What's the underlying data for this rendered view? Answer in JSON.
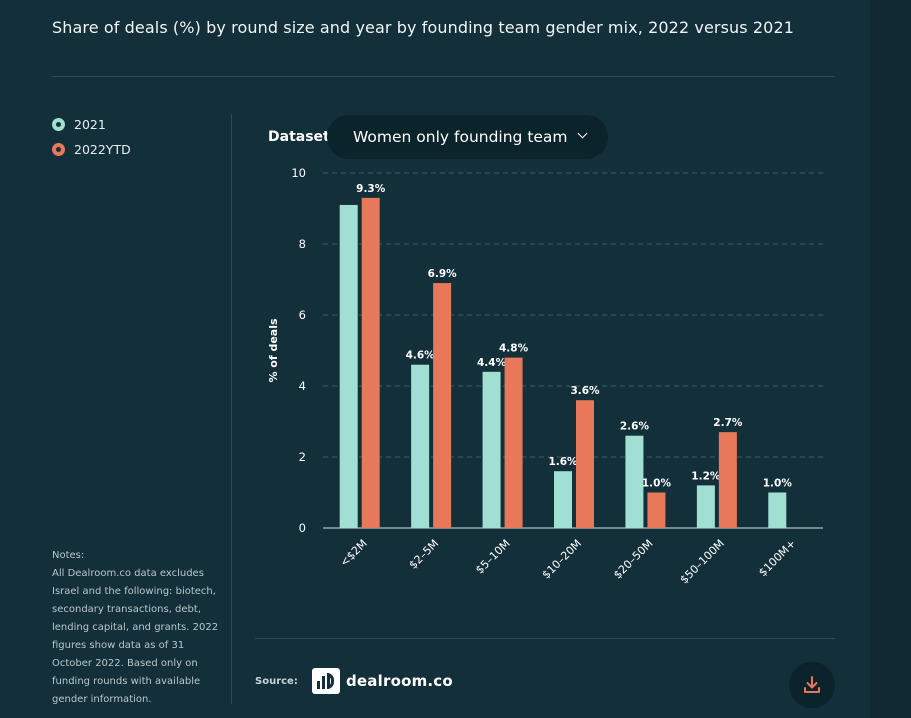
{
  "title": "Share of deals (%) by round size and year by founding team gender mix, 2022 versus 2021",
  "legend": [
    {
      "label": "2021",
      "color": "#9fe0d3"
    },
    {
      "label": "2022YTD",
      "color": "#e8785a"
    }
  ],
  "dataset": {
    "label": "Dataset",
    "selected": "Women only founding team"
  },
  "notes": {
    "label": "Notes:",
    "text": "All Dealroom.co data excludes Israel and the following: biotech, secondary transactions, debt, lending capital, and grants. 2022 figures show data as of 31 October 2022. Based only on funding rounds with available gender information."
  },
  "source": {
    "label": "Source:",
    "brand": "dealroom.co"
  },
  "icons": {
    "download": "download-icon",
    "chevron": "chevron-down-icon",
    "logo": "dealroom-logo-icon"
  },
  "chart_data": {
    "type": "bar",
    "categories": [
      "<$2M",
      "$2–5M",
      "$5–10M",
      "$10–20M",
      "$20–50M",
      "$50–100M",
      "$100M+"
    ],
    "series": [
      {
        "name": "2021",
        "color": "#9fe0d3",
        "values": [
          9.1,
          4.6,
          4.4,
          1.6,
          2.6,
          1.2,
          1.0
        ],
        "labels": [
          "",
          "4.6%",
          "4.4%",
          "1.6%",
          "2.6%",
          "1.2%",
          "1.0%"
        ]
      },
      {
        "name": "2022YTD",
        "color": "#e8785a",
        "values": [
          9.3,
          6.9,
          4.8,
          3.6,
          1.0,
          2.7,
          null
        ],
        "labels": [
          "9.3%",
          "6.9%",
          "4.8%",
          "3.6%",
          "1.0%",
          "2.7%",
          ""
        ]
      }
    ],
    "ylabel": "% of deals",
    "xlabel": "",
    "ylim": [
      0,
      10
    ],
    "yticks": [
      0,
      2,
      4,
      6,
      8,
      10
    ],
    "grid": true
  }
}
